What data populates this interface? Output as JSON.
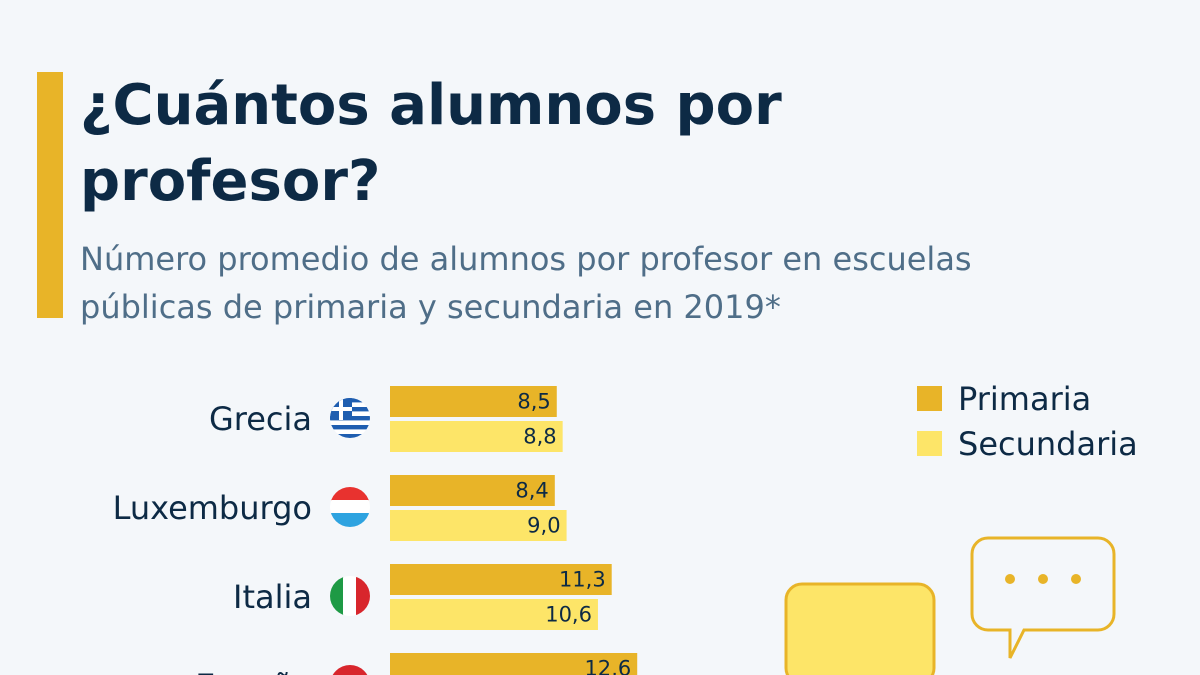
{
  "chart_data": {
    "type": "bar",
    "orientation": "horizontal",
    "title": [
      "¿Cuántos alumnos por",
      "profesor?"
    ],
    "subtitle": [
      "Número promedio de alumnos por profesor en escuelas",
      "públicas de primaria y secundaria en 2019*"
    ],
    "categories": [
      "Grecia",
      "Luxemburgo",
      "Italia",
      "España"
    ],
    "series": [
      {
        "name": "Primaria",
        "color": "#e8b428",
        "values": [
          8.5,
          8.4,
          11.3,
          12.6
        ],
        "value_labels": [
          "8,5",
          "8,4",
          "11,3",
          "12,6"
        ]
      },
      {
        "name": "Secundaria",
        "color": "#fde568",
        "values": [
          8.8,
          9.0,
          10.6,
          null
        ],
        "value_labels": [
          "8,8",
          "9,0",
          "10,6",
          null
        ]
      }
    ]
  }
}
